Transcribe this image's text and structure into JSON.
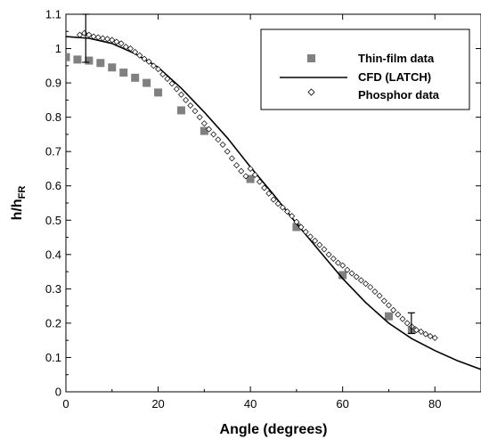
{
  "chart_data": {
    "type": "scatter",
    "title": "",
    "xlabel": "Angle (degrees)",
    "ylabel": {
      "main": "h/h",
      "sub": "FR"
    },
    "xlim": [
      0,
      90
    ],
    "ylim": [
      0,
      1.1
    ],
    "x_ticks": [
      0,
      20,
      40,
      60,
      80
    ],
    "y_ticks": [
      0,
      0.1,
      0.2,
      0.3,
      0.4,
      0.5,
      0.6,
      0.7,
      0.8,
      0.9,
      1,
      1.1
    ],
    "x_tick_labels": [
      "0",
      "20",
      "40",
      "60",
      "80"
    ],
    "y_tick_labels": [
      "0",
      "0.1",
      "0.2",
      "0.3",
      "0.4",
      "0.5",
      "0.6",
      "0.7",
      "0.8",
      "0.9",
      "1",
      "1.1"
    ],
    "grid": false,
    "legend_position": "top-right",
    "series": [
      {
        "name": "Thin-film data",
        "kind": "square-marker",
        "color": "#808080",
        "points": [
          [
            0,
            0.975
          ],
          [
            2.5,
            0.968
          ],
          [
            5,
            0.965
          ],
          [
            7.5,
            0.958
          ],
          [
            10,
            0.945
          ],
          [
            12.5,
            0.93
          ],
          [
            15,
            0.915
          ],
          [
            17.5,
            0.9
          ],
          [
            20,
            0.872
          ],
          [
            25,
            0.82
          ],
          [
            30,
            0.76
          ],
          [
            40,
            0.62
          ],
          [
            50,
            0.48
          ],
          [
            60,
            0.34
          ],
          [
            70,
            0.22
          ],
          [
            75,
            0.18
          ]
        ]
      },
      {
        "name": "CFD (LATCH)",
        "kind": "line",
        "color": "#000000",
        "points": [
          [
            0,
            1.035
          ],
          [
            5,
            1.03
          ],
          [
            10,
            1.015
          ],
          [
            15,
            0.985
          ],
          [
            20,
            0.945
          ],
          [
            25,
            0.885
          ],
          [
            30,
            0.815
          ],
          [
            35,
            0.74
          ],
          [
            40,
            0.655
          ],
          [
            45,
            0.575
          ],
          [
            50,
            0.49
          ],
          [
            55,
            0.41
          ],
          [
            60,
            0.33
          ],
          [
            65,
            0.26
          ],
          [
            70,
            0.2
          ],
          [
            75,
            0.155
          ],
          [
            80,
            0.12
          ],
          [
            85,
            0.09
          ],
          [
            90,
            0.065
          ]
        ]
      },
      {
        "name": "Phosphor data",
        "kind": "diamond-marker",
        "color": "#000000",
        "points": [
          [
            3,
            1.04
          ],
          [
            4,
            1.045
          ],
          [
            5,
            1.04
          ],
          [
            6,
            1.035
          ],
          [
            7,
            1.033
          ],
          [
            8,
            1.03
          ],
          [
            9,
            1.028
          ],
          [
            10,
            1.025
          ],
          [
            11,
            1.02
          ],
          [
            12,
            1.015
          ],
          [
            13,
            1.005
          ],
          [
            14,
            1.0
          ],
          [
            15,
            0.99
          ],
          [
            16,
            0.98
          ],
          [
            17,
            0.97
          ],
          [
            18,
            0.962
          ],
          [
            19,
            0.95
          ],
          [
            20,
            0.94
          ],
          [
            21,
            0.925
          ],
          [
            22,
            0.912
          ],
          [
            23,
            0.898
          ],
          [
            24,
            0.882
          ],
          [
            25,
            0.866
          ],
          [
            26,
            0.85
          ],
          [
            27,
            0.834
          ],
          [
            28,
            0.818
          ],
          [
            29,
            0.8
          ],
          [
            30,
            0.782
          ],
          [
            31,
            0.765
          ],
          [
            32,
            0.75
          ],
          [
            33,
            0.735
          ],
          [
            34,
            0.72
          ],
          [
            35,
            0.7
          ],
          [
            36,
            0.68
          ],
          [
            37,
            0.66
          ],
          [
            38,
            0.643
          ],
          [
            39,
            0.628
          ],
          [
            40,
            0.65
          ],
          [
            41,
            0.632
          ],
          [
            42,
            0.612
          ],
          [
            43,
            0.594
          ],
          [
            44,
            0.578
          ],
          [
            45,
            0.56
          ],
          [
            46,
            0.548
          ],
          [
            47,
            0.537
          ],
          [
            48,
            0.525
          ],
          [
            49,
            0.512
          ],
          [
            50,
            0.495
          ],
          [
            51,
            0.48
          ],
          [
            52,
            0.466
          ],
          [
            53,
            0.452
          ],
          [
            54,
            0.44
          ],
          [
            55,
            0.428
          ],
          [
            56,
            0.415
          ],
          [
            57,
            0.4
          ],
          [
            58,
            0.388
          ],
          [
            59,
            0.376
          ],
          [
            60,
            0.368
          ],
          [
            61,
            0.355
          ],
          [
            62,
            0.345
          ],
          [
            63,
            0.335
          ],
          [
            64,
            0.325
          ],
          [
            65,
            0.315
          ],
          [
            66,
            0.305
          ],
          [
            67,
            0.292
          ],
          [
            68,
            0.28
          ],
          [
            69,
            0.265
          ],
          [
            70,
            0.252
          ],
          [
            71,
            0.238
          ],
          [
            72,
            0.225
          ],
          [
            73,
            0.212
          ],
          [
            74,
            0.2
          ],
          [
            75,
            0.19
          ],
          [
            76,
            0.18
          ],
          [
            77,
            0.175
          ],
          [
            78,
            0.168
          ],
          [
            79,
            0.162
          ],
          [
            80,
            0.157
          ]
        ]
      }
    ],
    "error_bars": [
      {
        "x": 4.3,
        "y_low": 0.96,
        "y_high": 1.1
      },
      {
        "x": 74.9,
        "y_low": 0.17,
        "y_high": 0.23
      }
    ]
  }
}
